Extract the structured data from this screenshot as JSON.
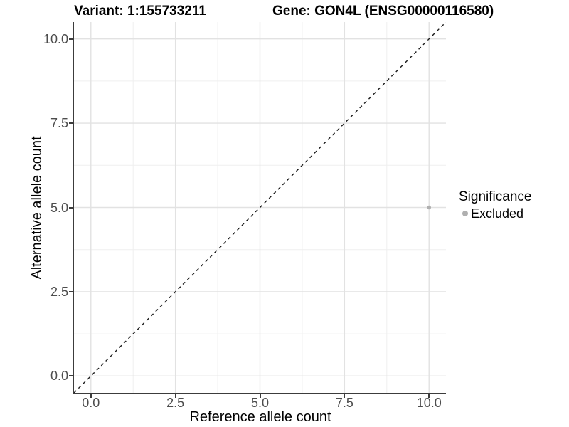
{
  "colors": {
    "background": "#ffffff",
    "grid_major": "#e2e2e2",
    "grid_minor": "#efefef",
    "axis_line": "#3c3c3c",
    "tick_label": "#4d4d4d",
    "point": "#b0b0b0",
    "ref_line": "#1a1a1a"
  },
  "chart_data": {
    "type": "scatter",
    "title_left": "Variant: 1:155733211",
    "title_right": "Gene: GON4L (ENSG00000116580)",
    "xlabel": "Reference allele count",
    "ylabel": "Alternative allele count",
    "xlim": [
      -0.5,
      10.5
    ],
    "ylim": [
      -0.5,
      10.5
    ],
    "xticks": [
      0,
      2.5,
      5,
      7.5,
      10
    ],
    "xtick_labels": [
      "0.0",
      "2.5",
      "5.0",
      "7.5",
      "10.0"
    ],
    "xticks_minor": [
      1.25,
      3.75,
      6.25,
      8.75
    ],
    "yticks": [
      0,
      2.5,
      5,
      7.5,
      10
    ],
    "ytick_labels": [
      "0.0",
      "2.5",
      "5.0",
      "7.5",
      "10.0"
    ],
    "yticks_minor": [
      1.25,
      3.75,
      6.25,
      8.75
    ],
    "grid": "major+minor",
    "points": [
      {
        "x": 10,
        "y": 5,
        "series": "Excluded",
        "color": "#b0b0b0"
      }
    ],
    "reference_line": {
      "style": "dashed",
      "color": "#1a1a1a",
      "from": [
        -0.5,
        -0.5
      ],
      "to": [
        10.5,
        10.5
      ]
    },
    "legend": {
      "position": "right",
      "title": "Significance",
      "items": [
        {
          "label": "Excluded",
          "color": "#b0b0b0"
        }
      ]
    }
  }
}
